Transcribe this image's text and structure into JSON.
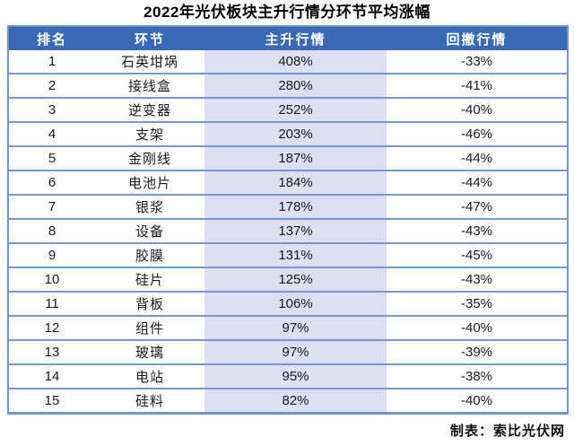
{
  "title": "2022年光伏板块主升行情分环节平均涨幅",
  "table": {
    "headers": [
      "排名",
      "环节",
      "主升行情",
      "回撤行情"
    ],
    "rows": [
      {
        "rank": "1",
        "segment": "石英坩埚",
        "rise": "408%",
        "drawdown": "-33%"
      },
      {
        "rank": "2",
        "segment": "接线盒",
        "rise": "280%",
        "drawdown": "-41%"
      },
      {
        "rank": "3",
        "segment": "逆变器",
        "rise": "252%",
        "drawdown": "-40%"
      },
      {
        "rank": "4",
        "segment": "支架",
        "rise": "203%",
        "drawdown": "-46%"
      },
      {
        "rank": "5",
        "segment": "金刚线",
        "rise": "187%",
        "drawdown": "-44%"
      },
      {
        "rank": "6",
        "segment": "电池片",
        "rise": "184%",
        "drawdown": "-44%"
      },
      {
        "rank": "7",
        "segment": "银浆",
        "rise": "178%",
        "drawdown": "-47%"
      },
      {
        "rank": "8",
        "segment": "设备",
        "rise": "137%",
        "drawdown": "-43%"
      },
      {
        "rank": "9",
        "segment": "胶膜",
        "rise": "131%",
        "drawdown": "-45%"
      },
      {
        "rank": "10",
        "segment": "硅片",
        "rise": "125%",
        "drawdown": "-43%"
      },
      {
        "rank": "11",
        "segment": "背板",
        "rise": "106%",
        "drawdown": "-35%"
      },
      {
        "rank": "12",
        "segment": "组件",
        "rise": "97%",
        "drawdown": "-40%"
      },
      {
        "rank": "13",
        "segment": "玻璃",
        "rise": "97%",
        "drawdown": "-39%"
      },
      {
        "rank": "14",
        "segment": "电站",
        "rise": "95%",
        "drawdown": "-38%"
      },
      {
        "rank": "15",
        "segment": "硅料",
        "rise": "82%",
        "drawdown": "-40%"
      }
    ]
  },
  "footer": {
    "credit": "制表：索比光伏网"
  },
  "colors": {
    "header_bg": "#3a69b5",
    "header_text": "#ffffff",
    "highlight_column_bg": "#dbe0f2",
    "row_border": "#7398d3",
    "outer_border": "#6e94d0"
  }
}
